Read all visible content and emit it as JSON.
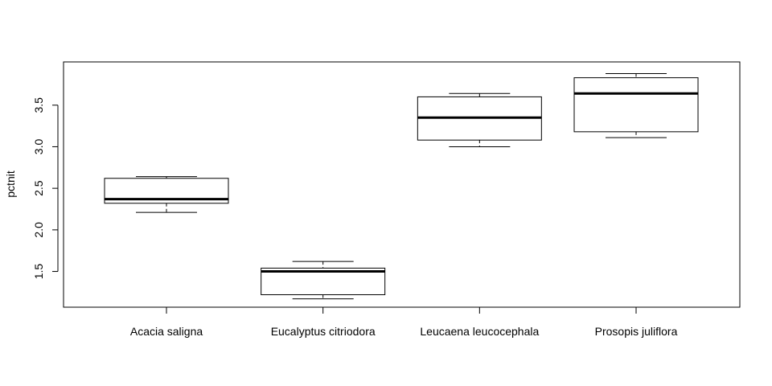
{
  "chart_data": {
    "type": "boxplot",
    "title": "",
    "xlabel": "",
    "ylabel": "pctnit",
    "categories": [
      "Acacia saligna",
      "Eucalyptus citriodora",
      "Leucaena leucocephala",
      "Prosopis juliflora"
    ],
    "boxes": [
      {
        "min": 2.21,
        "q1": 2.32,
        "median": 2.37,
        "q3": 2.62,
        "max": 2.64
      },
      {
        "min": 1.17,
        "q1": 1.22,
        "median": 1.5,
        "q3": 1.54,
        "max": 1.62
      },
      {
        "min": 3.0,
        "q1": 3.08,
        "median": 3.35,
        "q3": 3.6,
        "max": 3.64
      },
      {
        "min": 3.11,
        "q1": 3.18,
        "median": 3.64,
        "q3": 3.83,
        "max": 3.88
      }
    ],
    "ylim": [
      1.07,
      4.02
    ],
    "yticks": [
      1.5,
      2.0,
      2.5,
      3.0,
      3.5
    ],
    "ytick_labels": [
      "1.5",
      "2.0",
      "2.5",
      "3.0",
      "3.5"
    ],
    "grid": false,
    "legend": "none"
  }
}
